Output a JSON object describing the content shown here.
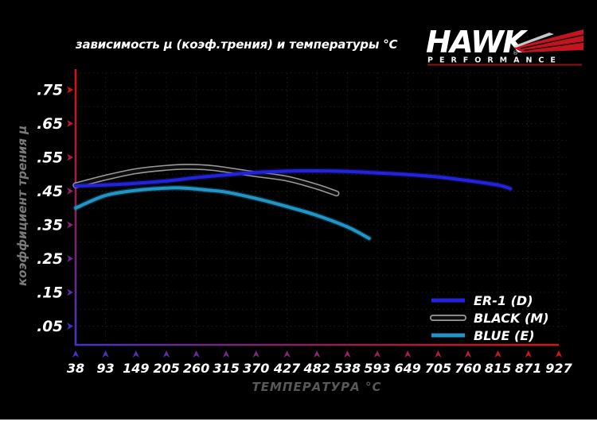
{
  "logo": {
    "brand": "HAWK",
    "reg_mark": "®",
    "subtitle": "PERFORMANCE",
    "colors": {
      "wing": "#c41420",
      "underline": "#8b1515",
      "text": "#ffffff"
    }
  },
  "chart_data": {
    "type": "line",
    "title": "зависимость μ (коэф.трения) и температуры °C",
    "xlabel": "ТЕМПЕРАТУРА °C",
    "ylabel": "коэффициент трения μ",
    "x_ticks": [
      38,
      93,
      149,
      205,
      260,
      315,
      370,
      427,
      482,
      538,
      593,
      649,
      705,
      760,
      815,
      871,
      927
    ],
    "y_tick_values": [
      0.75,
      0.65,
      0.55,
      0.45,
      0.35,
      0.25,
      0.15,
      0.05
    ],
    "y_tick_labels": [
      ".75",
      ".65",
      ".55",
      ".45",
      ".35",
      ".25",
      ".15",
      ".05"
    ],
    "xlim": [
      38,
      927
    ],
    "ylim": [
      0,
      0.8
    ],
    "grid": "dotted dark-gray, 0.05 μ steps and every temperature tick",
    "legend_position": "bottom-right",
    "axis_gradient": {
      "cool": "#4632c8",
      "hot": "#d81414"
    },
    "background": "#000000",
    "series": [
      {
        "name": "ER-1 (D)",
        "color": "#2323dd",
        "points": [
          [
            38,
            0.465
          ],
          [
            93,
            0.468
          ],
          [
            149,
            0.473
          ],
          [
            205,
            0.48
          ],
          [
            260,
            0.49
          ],
          [
            315,
            0.498
          ],
          [
            370,
            0.505
          ],
          [
            427,
            0.509
          ],
          [
            482,
            0.51
          ],
          [
            538,
            0.508
          ],
          [
            593,
            0.504
          ],
          [
            649,
            0.499
          ],
          [
            705,
            0.492
          ],
          [
            760,
            0.481
          ],
          [
            815,
            0.468
          ],
          [
            838,
            0.457
          ]
        ]
      },
      {
        "name": "BLACK (M)",
        "color": "#0d0d0d",
        "outline_color": "#9a9a9a",
        "points": [
          [
            38,
            0.467
          ],
          [
            93,
            0.49
          ],
          [
            149,
            0.509
          ],
          [
            205,
            0.519
          ],
          [
            240,
            0.522
          ],
          [
            280,
            0.52
          ],
          [
            315,
            0.513
          ],
          [
            370,
            0.5
          ],
          [
            427,
            0.487
          ],
          [
            482,
            0.463
          ],
          [
            518,
            0.443
          ]
        ]
      },
      {
        "name": "BLUE (E)",
        "color": "#2196c6",
        "points": [
          [
            38,
            0.4
          ],
          [
            93,
            0.437
          ],
          [
            149,
            0.452
          ],
          [
            205,
            0.459
          ],
          [
            240,
            0.459
          ],
          [
            280,
            0.453
          ],
          [
            315,
            0.447
          ],
          [
            370,
            0.428
          ],
          [
            427,
            0.404
          ],
          [
            482,
            0.378
          ],
          [
            538,
            0.344
          ],
          [
            578,
            0.31
          ]
        ]
      }
    ]
  }
}
